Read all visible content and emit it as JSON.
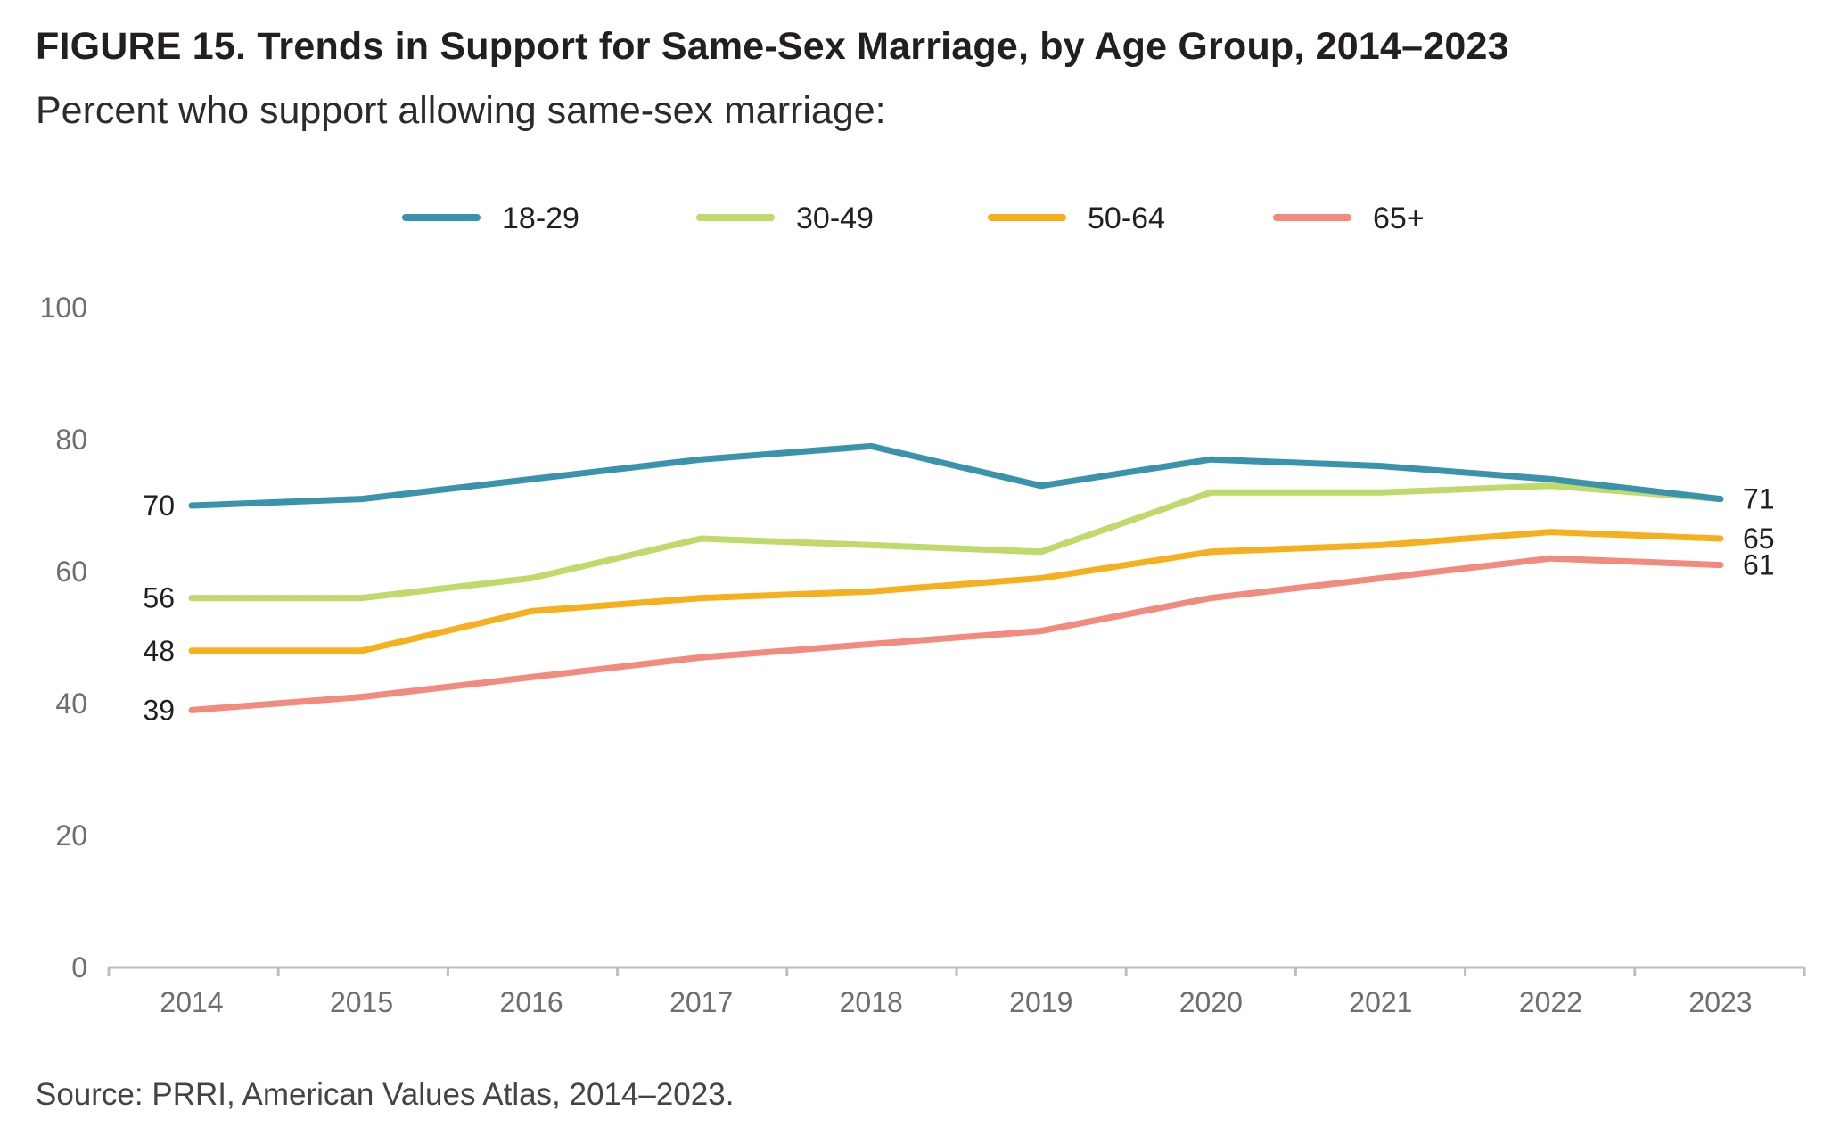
{
  "header": {
    "title": "FIGURE 15. Trends in Support for Same-Sex Marriage, by Age Group, 2014–2023",
    "subtitle": "Percent who support allowing same-sex marriage:"
  },
  "footer": {
    "source": "Source: PRRI, American Values Atlas, 2014–2023."
  },
  "chart_data": {
    "type": "line",
    "title": "FIGURE 15. Trends in Support for Same-Sex Marriage, by Age Group, 2014–2023",
    "subtitle": "Percent who support allowing same-sex marriage:",
    "xlabel": "",
    "ylabel": "",
    "x": [
      "2014",
      "2015",
      "2016",
      "2017",
      "2018",
      "2019",
      "2020",
      "2021",
      "2022",
      "2023"
    ],
    "ylim": [
      0,
      100
    ],
    "yticks": [
      0,
      20,
      40,
      60,
      80,
      100
    ],
    "grid": false,
    "legend_position": "top-center",
    "series": [
      {
        "name": "18-29",
        "color": "#3a93ac",
        "values": [
          70,
          71,
          74,
          77,
          79,
          73,
          77,
          76,
          74,
          71
        ],
        "start_label": "70",
        "end_label": "71"
      },
      {
        "name": "30-49",
        "color": "#bfd96a",
        "values": [
          56,
          56,
          59,
          65,
          64,
          63,
          72,
          72,
          73,
          71
        ],
        "start_label": "56",
        "end_label": ""
      },
      {
        "name": "50-64",
        "color": "#f6b01e",
        "values": [
          48,
          48,
          54,
          56,
          57,
          59,
          63,
          64,
          66,
          65
        ],
        "start_label": "48",
        "end_label": "65"
      },
      {
        "name": "65+",
        "color": "#f28a7d",
        "values": [
          39,
          41,
          44,
          47,
          49,
          51,
          56,
          59,
          62,
          61
        ],
        "start_label": "39",
        "end_label": "61"
      }
    ]
  }
}
